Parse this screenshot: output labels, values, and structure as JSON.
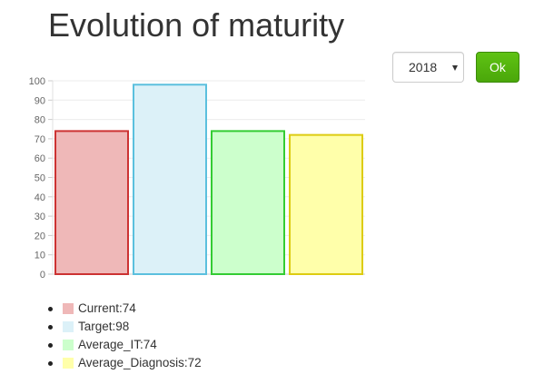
{
  "header": {
    "title": "Evolution of maturity"
  },
  "controls": {
    "year_select_value": "2018",
    "ok_label": "Ok"
  },
  "chart_data": {
    "type": "bar",
    "categories": [
      "Current",
      "Target",
      "Average_IT",
      "Average_Diagnosis"
    ],
    "values": [
      74,
      98,
      74,
      72
    ],
    "ylim": [
      0,
      100
    ],
    "yticks": [
      0,
      10,
      20,
      30,
      40,
      50,
      60,
      70,
      80,
      90,
      100
    ],
    "grid": true,
    "fill_colors": [
      "#efb8b8",
      "#dcf1f8",
      "#ccffcc",
      "#ffffaa"
    ],
    "border_colors": [
      "#cc3333",
      "#5bc0de",
      "#33cc33",
      "#ddcc11"
    ]
  },
  "legend": {
    "items": [
      "Current:74",
      "Target:98",
      "Average_IT:74",
      "Average_Diagnosis:72"
    ]
  }
}
